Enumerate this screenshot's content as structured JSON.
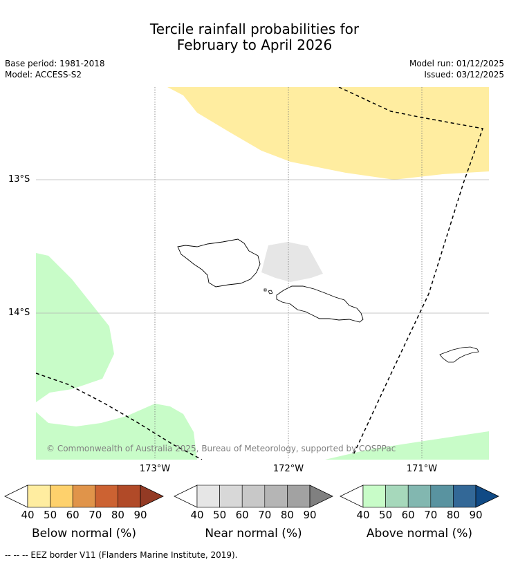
{
  "title_line1": "Tercile rainfall probabilities for",
  "title_line2": "February to April 2026",
  "meta": {
    "base_period": "Base period: 1981-2018",
    "model": "Model: ACCESS-S2",
    "model_run": "Model run: 01/12/2025",
    "issued": "Issued: 03/12/2025"
  },
  "axes": {
    "lat_labels": [
      "13°S",
      "14°S"
    ],
    "lon_labels": [
      "173°W",
      "172°W",
      "171°W"
    ]
  },
  "copyright": "© Commonwealth of Australia 2025, Bureau of Meteorology, supported by COSPPac",
  "colorbars": [
    {
      "label": "Below normal (%)",
      "ticks": [
        "40",
        "50",
        "60",
        "70",
        "80",
        "90"
      ],
      "colors": [
        "#ffeda0",
        "#fed16c",
        "#e0944a",
        "#cc6232",
        "#b14a28",
        "#933a24"
      ]
    },
    {
      "label": "Near normal (%)",
      "ticks": [
        "40",
        "50",
        "60",
        "70",
        "80",
        "90"
      ],
      "colors": [
        "#e6e6e6",
        "#d8d8d8",
        "#c8c8c8",
        "#b5b5b5",
        "#a2a2a2",
        "#808080"
      ]
    },
    {
      "label": "Above normal (%)",
      "ticks": [
        "40",
        "50",
        "60",
        "70",
        "80",
        "90"
      ],
      "colors": [
        "#c8fcc8",
        "#a6d8bb",
        "#82b7b0",
        "#5993a0",
        "#336897",
        "#104a85"
      ]
    }
  ],
  "footnote": "--  --  -- EEZ border V11 (Flanders Marine Institute, 2019).",
  "region_colors": {
    "below_normal_40_50": "#ffeda0",
    "near_normal_40_50": "#e6e6e6",
    "above_normal_40_50": "#c8fcc8"
  }
}
